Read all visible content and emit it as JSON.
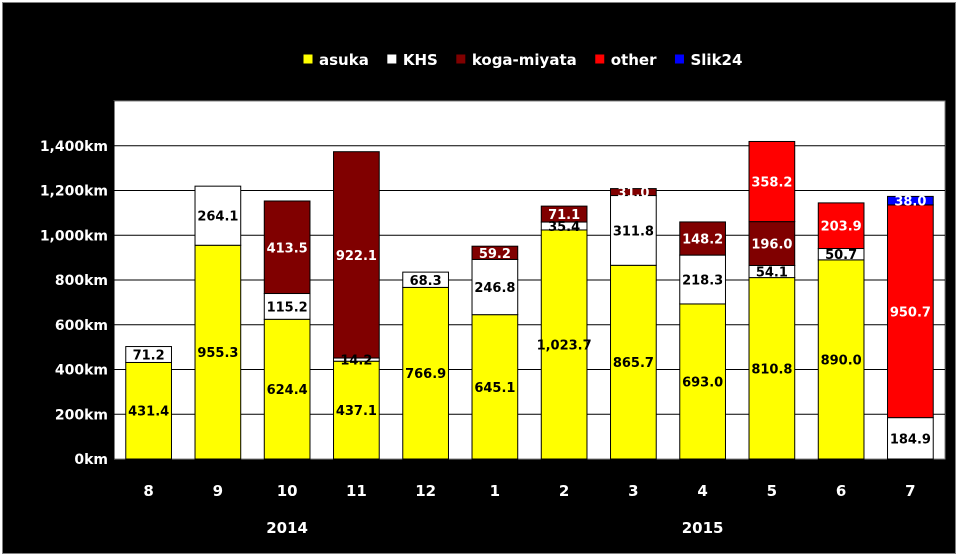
{
  "chart_data": {
    "type": "bar",
    "stacked": true,
    "categories": [
      "8",
      "9",
      "10",
      "11",
      "12",
      "1",
      "2",
      "3",
      "4",
      "5",
      "6",
      "7"
    ],
    "year_labels": [
      {
        "label": "2014",
        "from": 0,
        "to": 4
      },
      {
        "label": "2015",
        "from": 5,
        "to": 11
      }
    ],
    "series": [
      {
        "name": "asuka",
        "color": "#ffff00",
        "values": [
          431.4,
          955.3,
          624.4,
          437.1,
          766.9,
          645.1,
          1023.7,
          865.7,
          693.0,
          810.8,
          890.0,
          0
        ]
      },
      {
        "name": "KHS",
        "color": "#ffffff",
        "values": [
          71.2,
          264.1,
          115.2,
          14.2,
          68.3,
          246.8,
          35.4,
          311.8,
          218.3,
          54.1,
          50.7,
          184.9
        ]
      },
      {
        "name": "koga-miyata",
        "color": "#800000",
        "values": [
          0,
          0,
          413.5,
          922.1,
          0,
          59.2,
          71.1,
          31.0,
          148.2,
          196.0,
          0,
          0
        ]
      },
      {
        "name": "other",
        "color": "#ff0000",
        "values": [
          0,
          0,
          0,
          0,
          0,
          0,
          0,
          0,
          0,
          358.2,
          203.9,
          950.7
        ]
      },
      {
        "name": "Slik24",
        "color": "#0000ff",
        "values": [
          0,
          0,
          0,
          0,
          0,
          0,
          0,
          0,
          0,
          0,
          0,
          38.0
        ]
      }
    ],
    "data_labels": [
      [
        "431.4",
        "955.3",
        "624.4",
        "437.1",
        "766.9",
        "645.1",
        "1,023.7",
        "865.7",
        "693.0",
        "810.8",
        "890.0",
        ""
      ],
      [
        "71.2",
        "264.1",
        "115.2",
        "14.2",
        "68.3",
        "246.8",
        "35.4",
        "311.8",
        "218.3",
        "54.1",
        "50.7",
        "184.9"
      ],
      [
        "",
        "",
        "413.5",
        "922.1",
        "",
        "59.2",
        "71.1",
        "31.0",
        "148.2",
        "196.0",
        "",
        ""
      ],
      [
        "",
        "",
        "",
        "",
        "",
        "",
        "",
        "",
        "",
        "358.2",
        "203.9",
        "950.7"
      ],
      [
        "",
        "",
        "",
        "",
        "",
        "",
        "",
        "",
        "",
        "",
        "",
        "38.0"
      ]
    ],
    "ylim": [
      0,
      1600
    ],
    "yticks": [
      0,
      200,
      400,
      600,
      800,
      1000,
      1200,
      1400
    ],
    "ytick_labels": [
      "0km",
      "200km",
      "400km",
      "600km",
      "800km",
      "1,000km",
      "1,200km",
      "1,400km"
    ],
    "grid": true,
    "legend_position": "top"
  }
}
